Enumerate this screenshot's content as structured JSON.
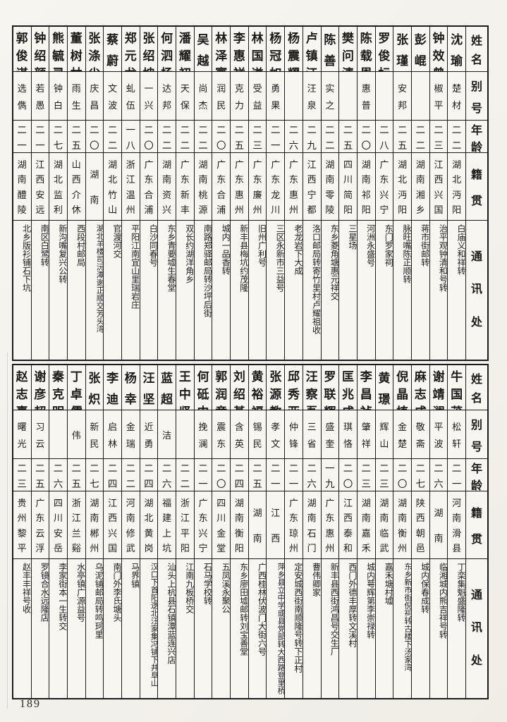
{
  "page": {
    "number": "189"
  },
  "columns": {
    "name": "姓名",
    "alias": "别号",
    "age": "年龄",
    "origin": "籍贯",
    "address": "通讯处"
  },
  "tables": [
    {
      "entries": [
        {
          "name": "沈瑜",
          "alias": "楚材",
          "age": "二二",
          "origin": "湖北沔阳",
          "address": "白庙义和祥转"
        },
        {
          "name": "钟效曾",
          "alias": "椒平",
          "age": "二三",
          "origin": "江西兴国",
          "address": "治平观钟清和号转"
        },
        {
          "name": "彭崐",
          "alias": "",
          "age": "二二",
          "origin": "湖南湘乡",
          "address": "蒋市街邮转"
        },
        {
          "name": "张瑾",
          "alias": "安邦",
          "age": "二五",
          "origin": "湖北沔阳",
          "address": "脉旺嘴陈正顺转"
        },
        {
          "name": "罗俊标",
          "alias": "",
          "age": "二八",
          "origin": "广东兴宁",
          "address": "东门罗家祠"
        },
        {
          "name": "陈载恩",
          "alias": "惠普",
          "age": "二〇",
          "origin": "湖南祁阳",
          "address": "河洲永盛号"
        },
        {
          "name": "樊问清",
          "alias": "",
          "age": "二五",
          "origin": "四川简阳",
          "address": "三星场"
        },
        {
          "name": "陈善",
          "alias": "实之",
          "age": "二二",
          "origin": "湖南零陵",
          "address": "东乡菱角塘惠元祥交"
        },
        {
          "name": "卢镇江",
          "alias": "汪泉",
          "age": "二九",
          "origin": "江西宁都",
          "address": "洛口邮局转寄竹里村卢耀祖收"
        },
        {
          "name": "杨震耀",
          "alias": "",
          "age": "二六",
          "origin": "广东惠州",
          "address": "老龙岩下大成"
        },
        {
          "name": "杨冠如",
          "alias": "勇果",
          "age": "二一",
          "origin": "广东龙川",
          "address": "三区永新市三益号"
        },
        {
          "name": "林国谦",
          "alias": "受益",
          "age": "二三",
          "origin": "广东廉州",
          "address": "旧州广利号"
        },
        {
          "name": "李惠祥",
          "alias": "克力",
          "age": "二五",
          "origin": "广东惠州",
          "address": "新丰县梅坑约茂隆"
        },
        {
          "name": "林泽寰",
          "alias": "润民",
          "age": "二〇",
          "origin": "广东合浦",
          "address": "城内一品香转"
        },
        {
          "name": "吴越",
          "alias": "尚杰",
          "age": "二二",
          "origin": "湖南桃源",
          "address": "南路郑驿邮局转沙坪后街"
        },
        {
          "name": "潘耀初",
          "alias": "天保",
          "age": "二二",
          "origin": "广东新丰",
          "address": "双长约湖洋角乡"
        },
        {
          "name": "何泗杨",
          "alias": "达邦",
          "age": "二二",
          "origin": "湖南资兴",
          "address": "东乡青要墟生春堂"
        },
        {
          "name": "张绍坤",
          "alias": "一兴",
          "age": "二〇",
          "origin": "广东合浦",
          "address": "白沙同春号"
        },
        {
          "name": "郑元龙",
          "alias": "虬伍",
          "age": "一八",
          "origin": "浙江温州",
          "address": "平阳江南宜山里瑞岩庄"
        },
        {
          "name": "蔡蔚",
          "alias": "文波",
          "age": "二二",
          "origin": "湖北竹山",
          "address": "官渡河交"
        },
        {
          "name": "张涤尘",
          "alias": "庆昌",
          "age": "二〇",
          "origin": "湖南",
          "address": "湖北羊楼司沅潭谢正顺交芳头湾"
        },
        {
          "name": "董树林",
          "alias": "雨生",
          "age": "二五",
          "origin": "山西介休",
          "address": "西段村邮局"
        },
        {
          "name": "熊毓灵",
          "alias": "钟白",
          "age": "二七",
          "origin": "湖北监利",
          "address": "新沟嘴复兴公转"
        },
        {
          "name": "钟绍颜",
          "alias": "若愚",
          "age": "二一",
          "origin": "江西安远",
          "address": "南区白鹭转"
        },
        {
          "name": "郭俊谋",
          "alias": "选儁",
          "age": "二一",
          "origin": "湖南醴陵",
          "address": "北乡版衫铺石下坑"
        }
      ]
    },
    {
      "entries": [
        {
          "name": "牛国茂",
          "alias": "松轩",
          "age": "二一",
          "origin": "河南滑县",
          "address": "丁栾集魁盛隆转"
        },
        {
          "name": "谢靖澜",
          "alias": "平波",
          "age": "二六",
          "origin": "湖南",
          "address": "临湘城内熊吉祥号转"
        },
        {
          "name": "麻志成",
          "alias": "敬斋",
          "age": "二七",
          "origin": "陕西朝邑",
          "address": "城内保春成转"
        },
        {
          "name": "倪晶植",
          "alias": "金楚",
          "age": "二〇",
          "origin": "湖南衡州",
          "address": "东乡新市街倪祠转古楼下汤家湾"
        },
        {
          "name": "黄璟",
          "alias": "辉山",
          "age": "二三",
          "origin": "湖南临武",
          "address": "嘉禾塘村墟"
        },
        {
          "name": "李昌祯",
          "alias": "肇祥",
          "age": "二三",
          "origin": "湖南嘉禾",
          "address": "城内萼辉第李崇禄转"
        },
        {
          "name": "匡兆成",
          "alias": "琪恪",
          "age": "二〇",
          "origin": "江西泰和",
          "address": "西门外德丰厚转文溪村"
        },
        {
          "name": "罗联辉",
          "alias": "盛奎",
          "age": "一九",
          "origin": "广东惠州",
          "address": "新丰县西街鸿昌号交生厂"
        },
        {
          "name": "汪察吾",
          "alias": "三省",
          "age": "二六",
          "origin": "湖南石门",
          "address": "曹伟卿家"
        },
        {
          "name": "邱秀亚",
          "alias": "仲锋",
          "age": "二一",
          "origin": "广东琼州",
          "address": "定安城西街南顺隆号转下正村"
        },
        {
          "name": "张源教",
          "alias": "孝文",
          "age": "二一",
          "origin": "江西",
          "address": "萍乡县立中学或县党部转大西路登里桥"
        },
        {
          "name": "黄裕福",
          "alias": "锡民",
          "age": "二五",
          "origin": "湖南",
          "address": "广西桂林伏波门大街六号"
        },
        {
          "name": "刘绍基",
          "alias": "含英",
          "age": "二四",
          "origin": "湖南衡阳",
          "address": "东乡廖田墟邮转刘宝善堂"
        },
        {
          "name": "郭润章",
          "alias": "震东",
          "age": "二〇",
          "origin": "四川金堂",
          "address": "五凤溪永聚公"
        },
        {
          "name": "何砥中",
          "alias": "挽澜",
          "age": "二一",
          "origin": "广东兴宁",
          "address": "石马学校转"
        },
        {
          "name": "王中坚",
          "alias": "",
          "age": "二二",
          "origin": "浙江平阳",
          "address": "江南九板桥交"
        },
        {
          "name": "蓝超",
          "alias": "洁",
          "age": "二六",
          "origin": "福建上坑",
          "address": "汕头上杭县石镇潭蓝连兴店"
        },
        {
          "name": "汪坚",
          "alias": "近勇",
          "age": "二四",
          "origin": "湖北黄岗",
          "address": "汉口下首阳逻北汪家集冯铺下井阜山"
        },
        {
          "name": "杨幸",
          "alias": "金瑞",
          "age": "二二",
          "origin": "河南修武",
          "address": "马界镇"
        },
        {
          "name": "李迪",
          "alias": "启林",
          "age": "二四",
          "origin": "江西兴国",
          "address": "南门外李氏塘头"
        },
        {
          "name": "张炽",
          "alias": "新民",
          "age": "二七",
          "origin": "湖南郴州",
          "address": "乌泥铺邮局转鸣珂里"
        },
        {
          "name": "丁卓儒",
          "alias": "伟",
          "age": "二五",
          "origin": "浙江兰谿",
          "address": "水亭镇广源益号"
        },
        {
          "name": "秦克明",
          "alias": "",
          "age": "二六",
          "origin": "四川安岳",
          "address": "李家街本一生转交"
        },
        {
          "name": "谢彦超",
          "alias": "习云",
          "age": "二五",
          "origin": "广东云浮",
          "address": "罗镜合水远隆店"
        },
        {
          "name": "赵志熹",
          "alias": "曙光",
          "age": "二三",
          "origin": "贵州黎平",
          "address": "赵丰丰祥号收"
        }
      ]
    }
  ]
}
